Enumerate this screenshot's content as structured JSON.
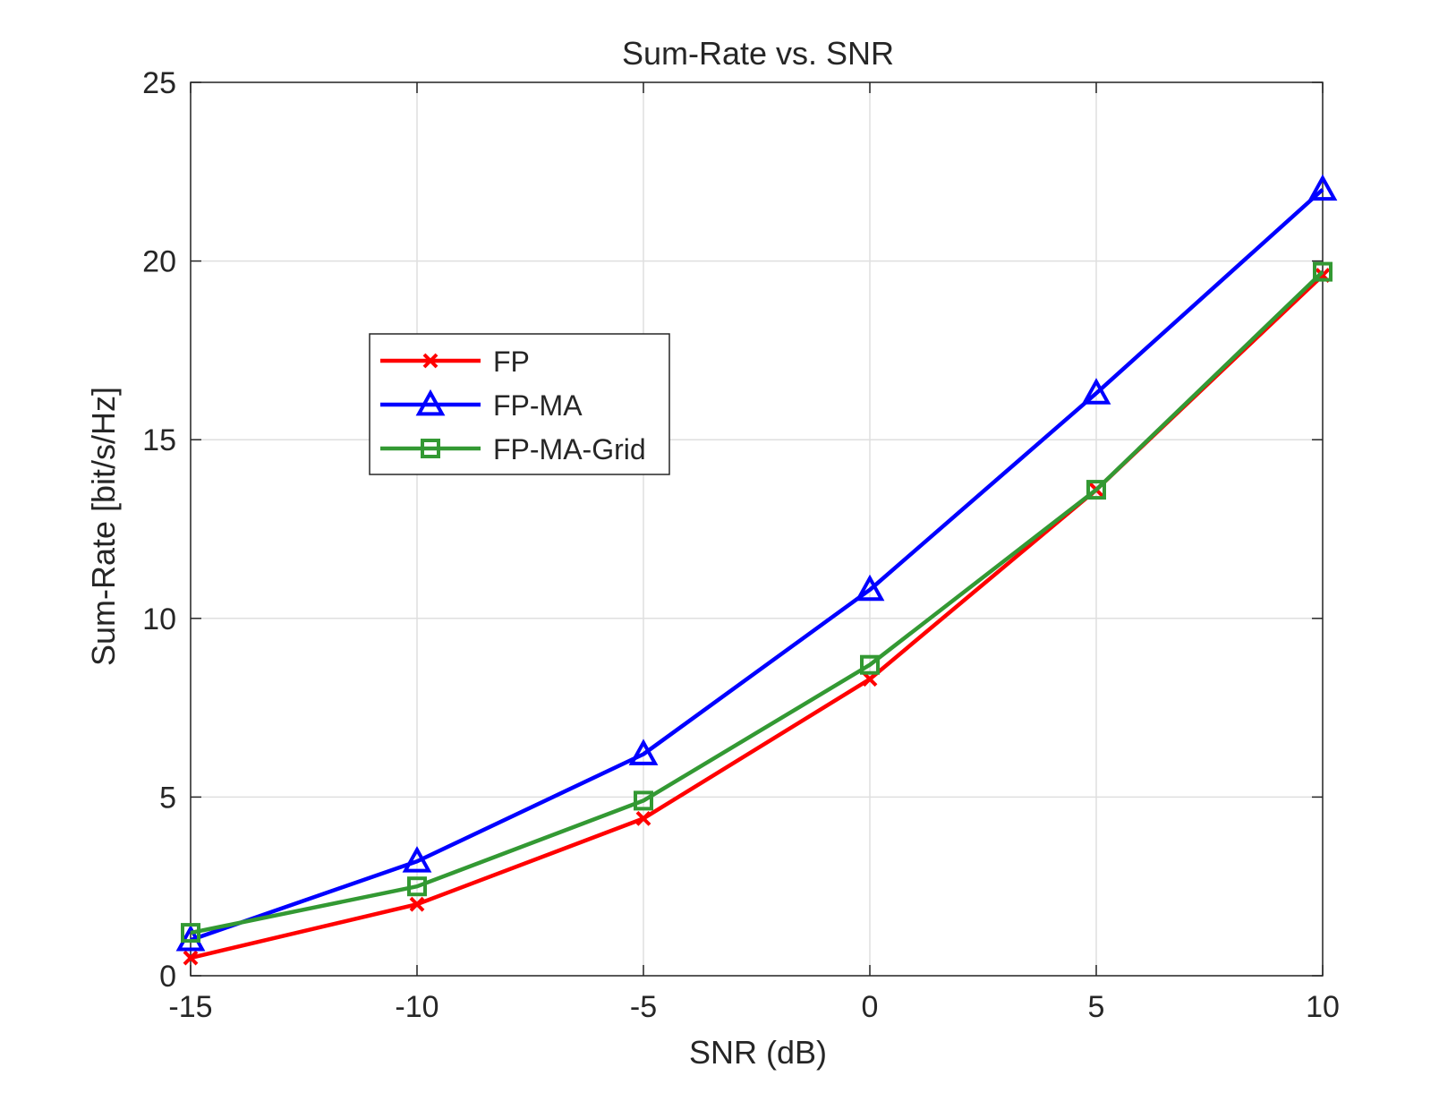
{
  "chart_data": {
    "type": "line",
    "title": "Sum-Rate vs. SNR",
    "xlabel": "SNR (dB)",
    "ylabel": "Sum-Rate [bit/s/Hz]",
    "x": [
      -15,
      -10,
      -5,
      0,
      5,
      10
    ],
    "xlim": [
      -15,
      10
    ],
    "ylim": [
      0,
      25
    ],
    "xticks": [
      -15,
      -10,
      -5,
      0,
      5,
      10
    ],
    "yticks": [
      0,
      5,
      10,
      15,
      20,
      25
    ],
    "xtick_labels": [
      "-15",
      "-10",
      "-5",
      "0",
      "5",
      "10"
    ],
    "ytick_labels": [
      "0",
      "5",
      "10",
      "15",
      "20",
      "25"
    ],
    "grid": true,
    "legend_position": "upper-left-center",
    "series": [
      {
        "name": "FP",
        "color": "#ff0000",
        "marker": "x",
        "values": [
          0.5,
          2.0,
          4.4,
          8.3,
          13.6,
          19.6
        ]
      },
      {
        "name": "FP-MA",
        "color": "#0000ff",
        "marker": "triangle",
        "values": [
          1.0,
          3.2,
          6.2,
          10.8,
          16.3,
          22.0
        ]
      },
      {
        "name": "FP-MA-Grid",
        "color": "#339933",
        "marker": "square",
        "values": [
          1.2,
          2.5,
          4.9,
          8.7,
          13.6,
          19.7
        ]
      }
    ]
  }
}
